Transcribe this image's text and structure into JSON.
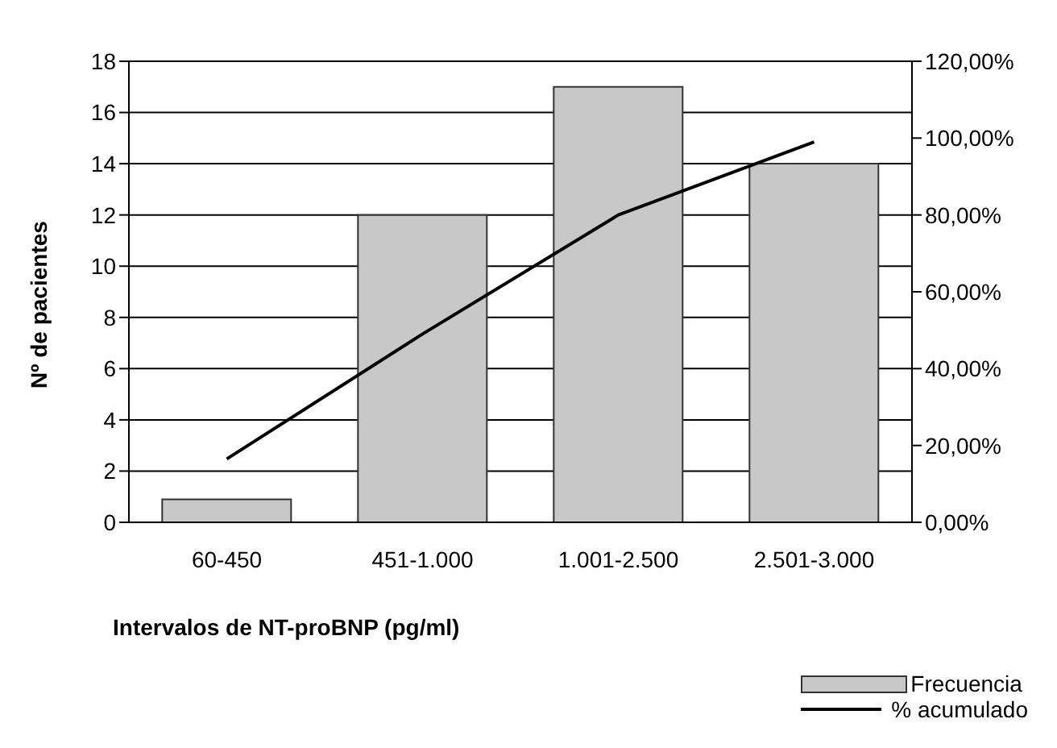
{
  "chart_data": {
    "type": "bar",
    "xlabel": "Intervalos de NT-proBNP (pg/ml)",
    "ylabel": "Nº de pacientes",
    "categories": [
      "60-450",
      "451-1.000",
      "1.001-2.500",
      "2.501-3.000"
    ],
    "series": [
      {
        "name": "Frecuencia",
        "color": "#c8c8c8",
        "values": [
          0.9,
          12,
          17,
          14
        ]
      },
      {
        "name": "% acumulado",
        "type": "line",
        "axis": "y2",
        "color": "#000000",
        "values": [
          16.5,
          49,
          80,
          99
        ]
      }
    ],
    "ylim": [
      0,
      18
    ],
    "yticks": [
      0,
      2,
      4,
      6,
      8,
      10,
      12,
      14,
      16,
      18
    ],
    "y2lim": [
      0,
      120
    ],
    "y2ticks": [
      {
        "value": 0,
        "label": "0,00%"
      },
      {
        "value": 20,
        "label": "20,00%"
      },
      {
        "value": 40,
        "label": "40,00%"
      },
      {
        "value": 60,
        "label": "60,00%"
      },
      {
        "value": 80,
        "label": "80,00%"
      },
      {
        "value": 100,
        "label": "100,00%"
      },
      {
        "value": 120,
        "label": "120,00%"
      }
    ],
    "grid": "y",
    "legend": "bottom right",
    "marker": "none",
    "line_style": "solid"
  }
}
